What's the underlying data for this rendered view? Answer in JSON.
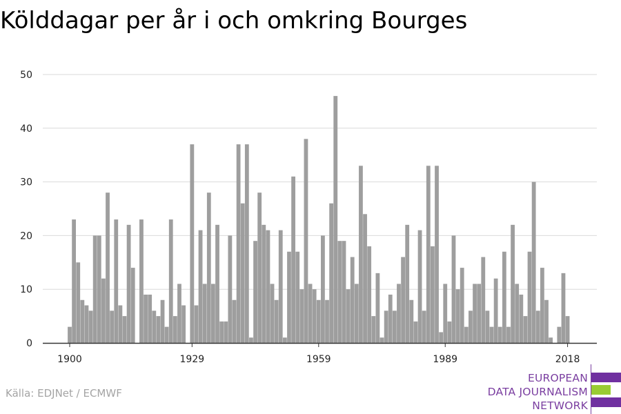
{
  "header": {
    "title": "Kölddagar per år i och omkring Bourges"
  },
  "footer": {
    "source": "Källa: EDJNet / ECMWF"
  },
  "logo": {
    "lines": [
      "EUROPEAN",
      "DATA JOURNALISM",
      "NETWORK"
    ],
    "colors": {
      "purple": "#7030a0",
      "green": "#99cc33",
      "text": "#7a3ea0"
    }
  },
  "colors": {
    "bar": "#9e9e9e",
    "grid": "#d9d9d9",
    "axis": "#333333"
  },
  "chart_data": {
    "type": "bar",
    "title": "Kölddagar per år i och omkring Bourges",
    "xlabel": "",
    "ylabel": "",
    "x_start": 1900,
    "x_end": 2018,
    "x_ticks": [
      "1900",
      "1929",
      "1959",
      "1989",
      "2018"
    ],
    "y_ticks": [
      "0",
      "10",
      "20",
      "30",
      "40",
      "50"
    ],
    "ylim": [
      0,
      50
    ],
    "grid": true,
    "values": [
      3,
      23,
      15,
      8,
      7,
      6,
      20,
      20,
      12,
      28,
      6,
      23,
      7,
      5,
      22,
      14,
      0,
      23,
      9,
      9,
      6,
      5,
      8,
      3,
      23,
      5,
      11,
      7,
      0,
      37,
      7,
      21,
      11,
      28,
      11,
      22,
      4,
      4,
      20,
      8,
      37,
      26,
      37,
      1,
      19,
      28,
      22,
      21,
      11,
      8,
      21,
      1,
      17,
      31,
      17,
      10,
      38,
      11,
      10,
      8,
      20,
      8,
      26,
      46,
      19,
      19,
      10,
      16,
      11,
      33,
      24,
      18,
      5,
      13,
      1,
      6,
      9,
      6,
      11,
      16,
      22,
      8,
      4,
      21,
      6,
      33,
      18,
      33,
      2,
      11,
      4,
      20,
      10,
      14,
      3,
      6,
      11,
      11,
      16,
      6,
      3,
      12,
      3,
      17,
      3,
      22,
      11,
      9,
      5,
      17,
      30,
      6,
      14,
      8,
      1,
      0,
      3,
      13,
      5
    ]
  }
}
